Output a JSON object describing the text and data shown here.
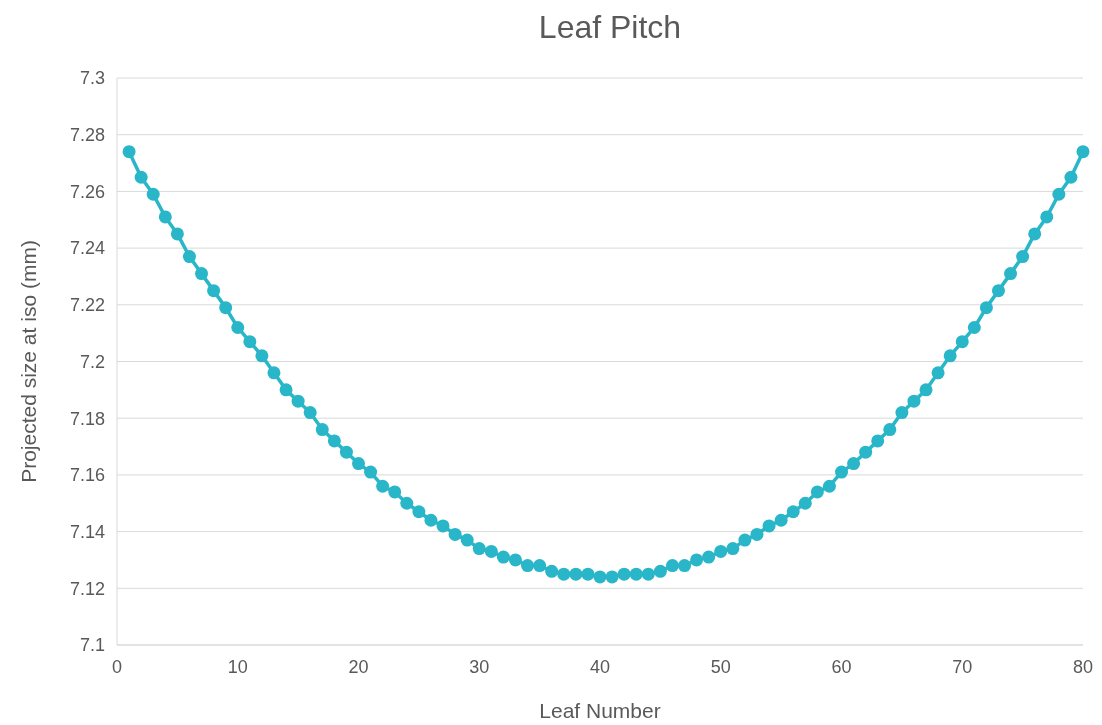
{
  "chart_data": {
    "type": "line",
    "title": "Leaf Pitch",
    "xlabel": "Leaf Number",
    "ylabel": "Projected size at iso (mm)",
    "x": [
      1,
      2,
      3,
      4,
      5,
      6,
      7,
      8,
      9,
      10,
      11,
      12,
      13,
      14,
      15,
      16,
      17,
      18,
      19,
      20,
      21,
      22,
      23,
      24,
      25,
      26,
      27,
      28,
      29,
      30,
      31,
      32,
      33,
      34,
      35,
      36,
      37,
      38,
      39,
      40,
      41,
      42,
      43,
      44,
      45,
      46,
      47,
      48,
      49,
      50,
      51,
      52,
      53,
      54,
      55,
      56,
      57,
      58,
      59,
      60,
      61,
      62,
      63,
      64,
      65,
      66,
      67,
      68,
      69,
      70,
      71,
      72,
      73,
      74,
      75,
      76,
      77,
      78,
      79,
      80
    ],
    "series": [
      {
        "color": "#29b6c8",
        "values": [
          7.274,
          7.265,
          7.259,
          7.251,
          7.245,
          7.237,
          7.231,
          7.225,
          7.219,
          7.212,
          7.207,
          7.202,
          7.196,
          7.19,
          7.186,
          7.182,
          7.176,
          7.172,
          7.168,
          7.164,
          7.161,
          7.156,
          7.154,
          7.15,
          7.147,
          7.144,
          7.142,
          7.139,
          7.137,
          7.134,
          7.133,
          7.131,
          7.13,
          7.128,
          7.128,
          7.126,
          7.125,
          7.125,
          7.125,
          7.124,
          7.124,
          7.125,
          7.125,
          7.125,
          7.126,
          7.128,
          7.128,
          7.13,
          7.131,
          7.133,
          7.134,
          7.137,
          7.139,
          7.142,
          7.144,
          7.147,
          7.15,
          7.154,
          7.156,
          7.161,
          7.164,
          7.168,
          7.172,
          7.176,
          7.182,
          7.186,
          7.19,
          7.196,
          7.202,
          7.207,
          7.212,
          7.219,
          7.225,
          7.231,
          7.237,
          7.245,
          7.251,
          7.259,
          7.265,
          7.274
        ]
      }
    ],
    "xlim": [
      0,
      80
    ],
    "xticks": [
      0,
      10,
      20,
      30,
      40,
      50,
      60,
      70,
      80
    ],
    "ylim": [
      7.1,
      7.3
    ],
    "yticks": [
      {
        "value": 7.1,
        "label": "7.1"
      },
      7.12,
      7.14,
      7.16,
      7.18,
      {
        "value": 7.2,
        "label": "7.2"
      },
      7.22,
      7.24,
      7.26,
      7.28,
      {
        "value": 7.3,
        "label": "7.3"
      }
    ],
    "grid": "y",
    "marker": "circle",
    "line_style": "solid"
  }
}
